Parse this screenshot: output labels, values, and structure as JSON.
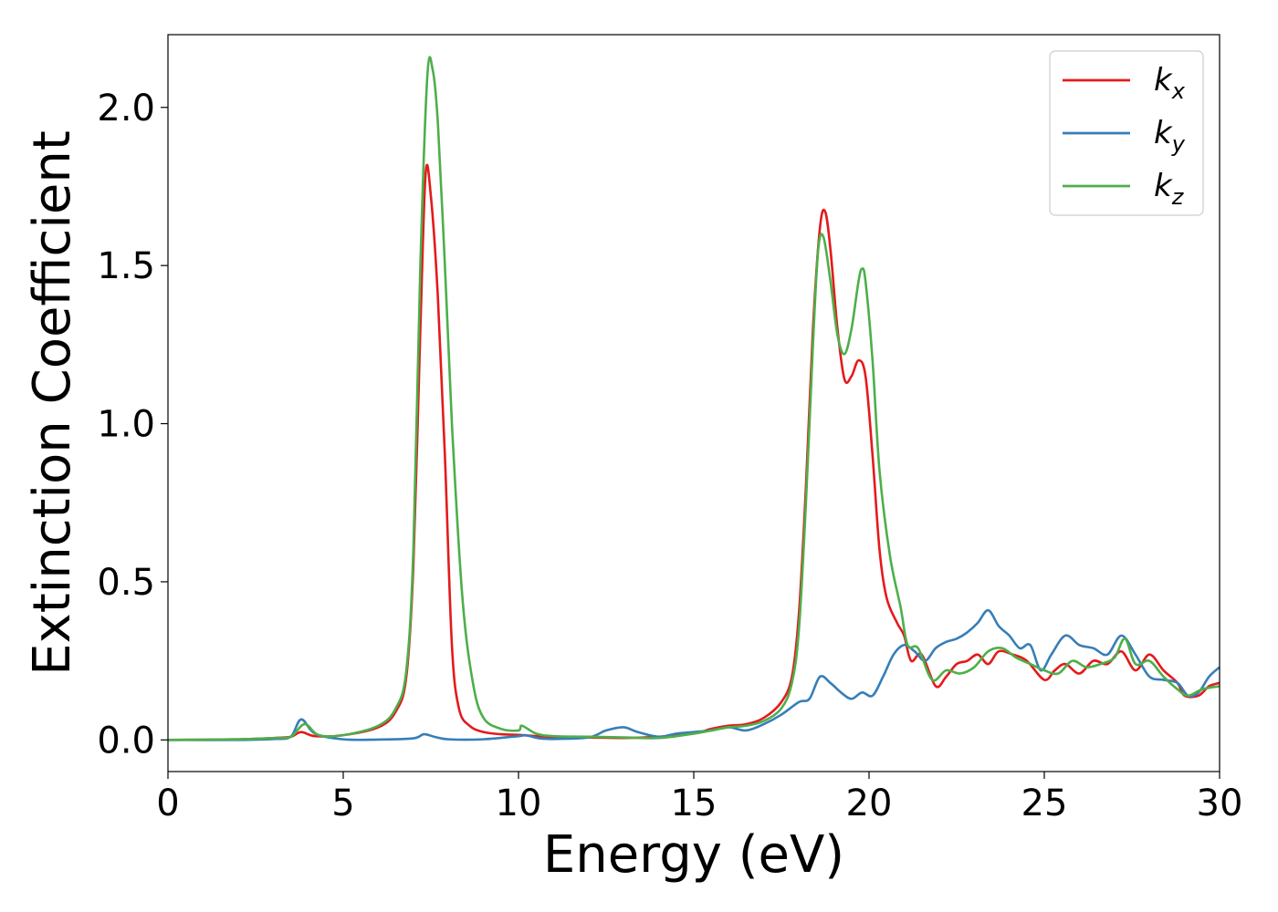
{
  "chart_data": {
    "type": "line",
    "xlabel": "Energy (eV)",
    "ylabel": "Extinction Coefficient",
    "xlim": [
      0,
      30
    ],
    "ylim": [
      -0.1,
      2.23
    ],
    "xticks": [
      0,
      5,
      10,
      15,
      20,
      25,
      30
    ],
    "xtick_labels": [
      "0",
      "5",
      "10",
      "15",
      "20",
      "25",
      "30"
    ],
    "yticks": [
      0.0,
      0.5,
      1.0,
      1.5,
      2.0
    ],
    "ytick_labels": [
      "0.0",
      "0.5",
      "1.0",
      "1.5",
      "2.0"
    ],
    "grid": false,
    "legend_position": "top-right",
    "series": [
      {
        "name": "k_x",
        "legend_base": "k",
        "legend_sub": "x",
        "color": "#e41a1c",
        "x": [
          0,
          2,
          3,
          3.5,
          3.8,
          4.2,
          5,
          6,
          6.5,
          6.8,
          7.0,
          7.2,
          7.35,
          7.5,
          7.7,
          7.9,
          8.1,
          8.3,
          8.6,
          9,
          9.5,
          10,
          10.5,
          11,
          12,
          13,
          14,
          15,
          15.5,
          16,
          16.5,
          17,
          17.5,
          17.8,
          18.0,
          18.2,
          18.4,
          18.6,
          18.75,
          18.9,
          19.1,
          19.3,
          19.5,
          19.7,
          19.9,
          20.1,
          20.3,
          20.5,
          20.8,
          21.0,
          21.2,
          21.5,
          21.9,
          22.2,
          22.5,
          22.8,
          23.1,
          23.4,
          23.7,
          24.1,
          24.5,
          25.0,
          25.3,
          25.6,
          26.0,
          26.4,
          26.8,
          27.2,
          27.6,
          28.0,
          28.4,
          28.8,
          29.0,
          29.4,
          29.7,
          30.0
        ],
        "y": [
          0.0,
          0.002,
          0.006,
          0.01,
          0.025,
          0.012,
          0.015,
          0.04,
          0.09,
          0.2,
          0.55,
          1.3,
          1.79,
          1.72,
          1.4,
          0.9,
          0.3,
          0.1,
          0.045,
          0.025,
          0.018,
          0.016,
          0.012,
          0.01,
          0.008,
          0.006,
          0.01,
          0.02,
          0.035,
          0.045,
          0.05,
          0.07,
          0.12,
          0.2,
          0.4,
          0.8,
          1.3,
          1.62,
          1.67,
          1.55,
          1.3,
          1.14,
          1.15,
          1.2,
          1.15,
          0.9,
          0.6,
          0.45,
          0.37,
          0.33,
          0.25,
          0.27,
          0.17,
          0.2,
          0.24,
          0.25,
          0.27,
          0.24,
          0.28,
          0.27,
          0.25,
          0.19,
          0.22,
          0.24,
          0.21,
          0.25,
          0.24,
          0.28,
          0.22,
          0.27,
          0.22,
          0.18,
          0.14,
          0.14,
          0.17,
          0.18
        ]
      },
      {
        "name": "k_y",
        "legend_base": "k",
        "legend_sub": "y",
        "color": "#377eb8",
        "x": [
          0,
          2,
          3,
          3.5,
          3.8,
          4.2,
          5,
          6,
          7,
          7.3,
          7.6,
          8,
          9,
          10,
          10.2,
          10.6,
          11,
          12,
          12.5,
          13,
          13.4,
          14,
          14.5,
          15,
          15.5,
          16,
          16.5,
          17,
          17.5,
          18,
          18.3,
          18.6,
          18.9,
          19.2,
          19.5,
          19.8,
          20.1,
          20.4,
          20.7,
          21.0,
          21.3,
          21.6,
          21.9,
          22.2,
          22.5,
          22.8,
          23.1,
          23.4,
          23.7,
          24.0,
          24.3,
          24.6,
          24.9,
          25.2,
          25.6,
          26.0,
          26.4,
          26.8,
          27.2,
          27.6,
          28.0,
          28.4,
          28.8,
          29.1,
          29.4,
          29.7,
          30.0
        ],
        "y": [
          0.0,
          0.0,
          0.003,
          0.01,
          0.065,
          0.02,
          0.002,
          0.001,
          0.005,
          0.018,
          0.01,
          0.002,
          0.002,
          0.012,
          0.015,
          0.005,
          0.003,
          0.008,
          0.03,
          0.04,
          0.025,
          0.01,
          0.02,
          0.025,
          0.03,
          0.04,
          0.03,
          0.05,
          0.08,
          0.12,
          0.13,
          0.2,
          0.18,
          0.15,
          0.13,
          0.15,
          0.14,
          0.2,
          0.27,
          0.3,
          0.28,
          0.25,
          0.29,
          0.31,
          0.32,
          0.34,
          0.37,
          0.41,
          0.36,
          0.33,
          0.29,
          0.3,
          0.22,
          0.27,
          0.33,
          0.3,
          0.29,
          0.27,
          0.33,
          0.27,
          0.2,
          0.19,
          0.18,
          0.14,
          0.15,
          0.2,
          0.23
        ]
      },
      {
        "name": "k_z",
        "legend_base": "k",
        "legend_sub": "z",
        "color": "#4daf4a",
        "x": [
          0,
          2,
          3,
          3.5,
          3.9,
          4.3,
          5,
          6,
          6.5,
          6.8,
          7.0,
          7.2,
          7.4,
          7.55,
          7.7,
          7.9,
          8.1,
          8.4,
          8.7,
          9,
          9.5,
          10,
          10.1,
          10.5,
          11,
          12,
          13,
          14,
          15,
          15.5,
          16,
          16.5,
          17,
          17.5,
          17.8,
          18.0,
          18.2,
          18.4,
          18.55,
          18.7,
          18.9,
          19.1,
          19.3,
          19.5,
          19.7,
          19.8,
          19.9,
          20.1,
          20.3,
          20.6,
          20.9,
          21.1,
          21.4,
          21.8,
          22.2,
          22.6,
          23.0,
          23.4,
          23.8,
          24.2,
          24.6,
          25.0,
          25.4,
          25.8,
          26.2,
          26.6,
          27.0,
          27.3,
          27.6,
          28.0,
          28.4,
          28.8,
          29.1,
          29.5,
          30.0
        ],
        "y": [
          0.0,
          0.002,
          0.006,
          0.01,
          0.05,
          0.015,
          0.015,
          0.045,
          0.1,
          0.22,
          0.6,
          1.5,
          2.1,
          2.12,
          1.95,
          1.5,
          1.0,
          0.45,
          0.18,
          0.07,
          0.035,
          0.03,
          0.045,
          0.02,
          0.012,
          0.01,
          0.008,
          0.006,
          0.02,
          0.03,
          0.04,
          0.045,
          0.06,
          0.1,
          0.18,
          0.35,
          0.75,
          1.25,
          1.55,
          1.59,
          1.45,
          1.28,
          1.22,
          1.3,
          1.45,
          1.49,
          1.45,
          1.2,
          0.85,
          0.58,
          0.42,
          0.3,
          0.29,
          0.19,
          0.22,
          0.21,
          0.23,
          0.28,
          0.29,
          0.26,
          0.24,
          0.22,
          0.21,
          0.25,
          0.23,
          0.24,
          0.26,
          0.32,
          0.24,
          0.25,
          0.2,
          0.16,
          0.14,
          0.16,
          0.17
        ]
      }
    ]
  }
}
